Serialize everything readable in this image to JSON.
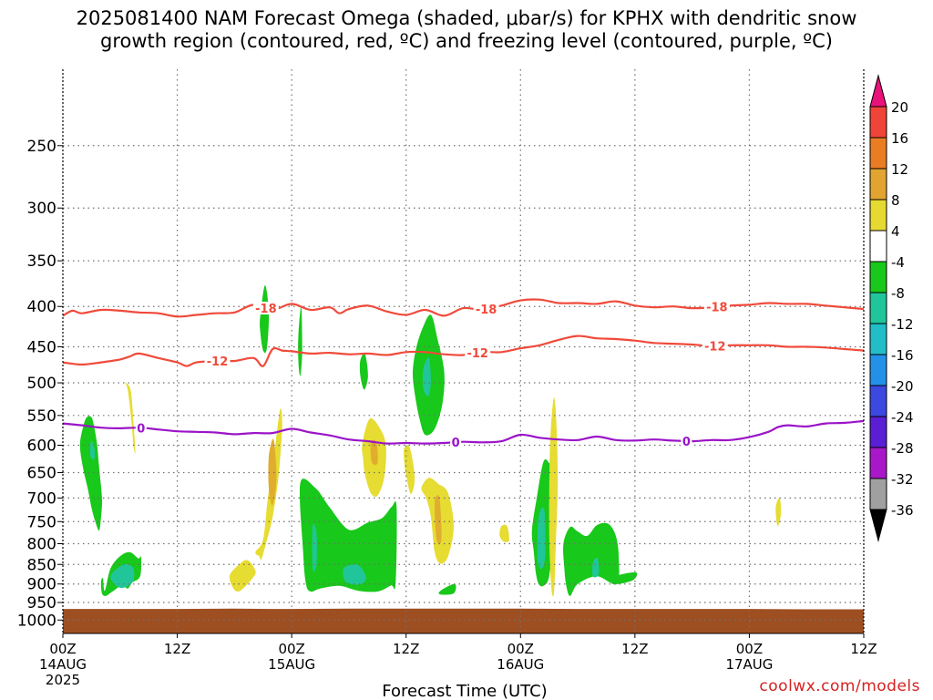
{
  "title_line1": "2025081400 NAM Forecast Omega (shaded, μbar/s) for KPHX with dendritic snow",
  "title_line2": "growth region (contoured, red, ºC) and freezing level (contoured, purple, ºC)",
  "credit": "coolwx.com/models",
  "colors": {
    "ground": "#9e4f22",
    "isotherm_red": "#f04a3a",
    "freezing_purple": "#9b14c8",
    "omega_green": "#18c81a",
    "omega_teal": "#21c59a",
    "omega_yellow": "#e6dc32",
    "omega_gold": "#e0ad2e"
  },
  "chart_data": {
    "type": "time-height cross-section",
    "title": "2025081400 NAM Forecast Omega (shaded, μbar/s) for KPHX with dendritic snow growth region (contoured, red, ºC) and freezing level (contoured, purple, ºC)",
    "xlabel": "Forecast Time (UTC)",
    "ylabel": "",
    "x_hours_range": [
      0,
      84
    ],
    "y_pressure_hpa_range": [
      200,
      1040
    ],
    "y_scale": "log-pressure, inverted",
    "grid": true,
    "x_ticks": [
      {
        "h": 0,
        "lines": [
          "00Z",
          "14AUG",
          "2025"
        ]
      },
      {
        "h": 12,
        "lines": [
          "12Z"
        ]
      },
      {
        "h": 24,
        "lines": [
          "00Z",
          "15AUG"
        ]
      },
      {
        "h": 36,
        "lines": [
          "12Z"
        ]
      },
      {
        "h": 48,
        "lines": [
          "00Z",
          "16AUG"
        ]
      },
      {
        "h": 60,
        "lines": [
          "12Z"
        ]
      },
      {
        "h": 72,
        "lines": [
          "00Z",
          "17AUG"
        ]
      },
      {
        "h": 84,
        "lines": [
          "12Z"
        ]
      }
    ],
    "y_ticks": [
      250,
      300,
      350,
      400,
      450,
      500,
      550,
      600,
      650,
      700,
      750,
      800,
      850,
      900,
      950,
      1000
    ],
    "colorbar": {
      "labels": [
        "20",
        "16",
        "12",
        "8",
        "4",
        "-4",
        "-8",
        "-12",
        "-16",
        "-20",
        "-24",
        "-28",
        "-32",
        "-36"
      ],
      "colors": [
        "#e8127a",
        "#f0433a",
        "#ea7d24",
        "#e2a431",
        "#e6d932",
        "#ffffff",
        "#18c81a",
        "#21c59a",
        "#21bec8",
        "#2391e8",
        "#3c48e0",
        "#5a1ed4",
        "#a818c8",
        "#a0a0a0",
        "#000000"
      ]
    },
    "ground_pressure": [
      968,
      968,
      968,
      967,
      968,
      968,
      967,
      967,
      967,
      967,
      968,
      968,
      968,
      968,
      968,
      969,
      969,
      969
    ],
    "ground_hours": [
      0,
      6,
      12,
      18,
      22,
      24,
      30,
      36,
      40,
      48,
      54,
      60,
      62,
      66,
      72,
      78,
      80,
      84
    ],
    "contours": [
      {
        "name": "-18",
        "color": "#f04a3a",
        "hours": [
          0,
          1,
          2,
          4,
          6,
          8,
          10,
          12,
          14,
          16,
          18,
          20,
          22,
          24,
          26,
          28,
          29,
          30,
          32,
          34,
          36,
          38,
          40,
          42,
          44,
          46,
          48,
          50,
          52,
          54,
          56,
          58,
          60,
          62,
          64,
          66,
          68,
          70,
          72,
          74,
          76,
          78,
          80,
          82,
          84
        ],
        "values": [
          411,
          405,
          408,
          404,
          405,
          407,
          408,
          412,
          410,
          408,
          407,
          398,
          404,
          397,
          404,
          401,
          408,
          403,
          399,
          406,
          410,
          404,
          411,
          402,
          404,
          399,
          393,
          392,
          396,
          396,
          397,
          394,
          399,
          401,
          400,
          402,
          401,
          399,
          398,
          396,
          397,
          397,
          399,
          401,
          403
        ],
        "labels": [
          {
            "h": 21.3,
            "text": "-18"
          },
          {
            "h": 44.4,
            "text": "-18"
          },
          {
            "h": 68.6,
            "text": "-18"
          }
        ]
      },
      {
        "name": "-12",
        "color": "#f04a3a",
        "hours": [
          0,
          2,
          4,
          6,
          7,
          8,
          10,
          12,
          13,
          14,
          16,
          18,
          20,
          21,
          22,
          23,
          24,
          26,
          28,
          30,
          32,
          34,
          36,
          38,
          40,
          42,
          44,
          46,
          48,
          50,
          52,
          54,
          56,
          58,
          60,
          62,
          64,
          66,
          68,
          70,
          72,
          74,
          76,
          78,
          80,
          82,
          84
        ],
        "values": [
          471,
          474,
          471,
          467,
          463,
          459,
          465,
          471,
          476,
          471,
          469,
          469,
          465,
          476,
          453,
          455,
          456,
          459,
          458,
          460,
          459,
          461,
          457,
          457,
          460,
          461,
          457,
          457,
          452,
          448,
          441,
          436,
          439,
          440,
          442,
          445,
          446,
          447,
          449,
          448,
          448,
          448,
          450,
          450,
          451,
          453,
          455
        ],
        "labels": [
          {
            "h": 16.2,
            "text": "-12"
          },
          {
            "h": 43.5,
            "text": "-12"
          },
          {
            "h": 68.4,
            "text": "-12"
          }
        ]
      },
      {
        "name": "0",
        "color": "#9b14c8",
        "hours": [
          0,
          2,
          4,
          6,
          8,
          10,
          12,
          14,
          16,
          18,
          20,
          22,
          24,
          26,
          28,
          30,
          32,
          34,
          36,
          38,
          40,
          42,
          44,
          46,
          48,
          50,
          52,
          54,
          56,
          58,
          60,
          62,
          64,
          66,
          68,
          70,
          72,
          74,
          75,
          76,
          78,
          80,
          82,
          84
        ],
        "values": [
          563,
          566,
          570,
          571,
          570,
          573,
          576,
          577,
          578,
          581,
          579,
          579,
          572,
          578,
          583,
          590,
          593,
          597,
          596,
          597,
          596,
          594,
          595,
          593,
          582,
          587,
          590,
          591,
          585,
          591,
          592,
          590,
          592,
          593,
          591,
          591,
          586,
          577,
          569,
          566,
          568,
          563,
          562,
          559
        ],
        "labels": [
          {
            "h": 8.2,
            "text": "0"
          },
          {
            "h": 41.2,
            "text": "0"
          },
          {
            "h": 65.4,
            "text": "0"
          }
        ]
      }
    ],
    "omega_regions": [
      {
        "level": "-4 to -8",
        "color": "#18c81a",
        "hours": [
          3.0,
          3.3,
          3.6,
          3.8,
          4.1,
          4.0,
          3.8,
          3.4,
          3.0,
          2.6,
          2.1,
          1.8,
          2.1,
          2.5
        ],
        "pressure": [
          553,
          570,
          600,
          640,
          700,
          740,
          770,
          750,
          720,
          680,
          640,
          600,
          570,
          553
        ]
      },
      {
        "level": "-8 to -12",
        "color": "#21c59a",
        "hours": [
          3.0,
          3.3,
          3.3,
          2.9,
          2.9
        ],
        "pressure": [
          592,
          605,
          625,
          620,
          600
        ]
      },
      {
        "level": "4 to 8",
        "color": "#e6dc32",
        "hours": [
          6.5,
          7.1,
          7.4,
          7.6,
          7.4,
          7.2,
          6.8
        ],
        "pressure": [
          500,
          510,
          560,
          613,
          600,
          560,
          510
        ]
      },
      {
        "level": "-4 to -8",
        "color": "#18c81a",
        "hours": [
          4.4,
          5.0,
          6.0,
          7.0,
          7.9,
          8.2,
          8.1,
          7.3,
          6.8,
          6.2,
          5.2,
          4.5,
          4.1,
          4.0,
          4.2
        ],
        "pressure": [
          918,
          860,
          830,
          820,
          835,
          832,
          880,
          896,
          912,
          904,
          920,
          932,
          925,
          895,
          885
        ]
      },
      {
        "level": "-8 to -12",
        "color": "#21c59a",
        "hours": [
          5.0,
          6.4,
          7.4,
          7.3,
          6.0
        ],
        "pressure": [
          880,
          850,
          860,
          895,
          910
        ]
      },
      {
        "level": "4 to 8",
        "color": "#e6dc32",
        "hours": [
          17.5,
          18.6,
          19.4,
          20.2,
          19.9,
          18.6,
          17.9
        ],
        "pressure": [
          878,
          848,
          840,
          866,
          885,
          918,
          912
        ]
      },
      {
        "level": "-4 to -8",
        "color": "#18c81a",
        "hours": [
          20.7,
          21.2,
          21.6,
          21.4,
          21.0,
          20.7
        ],
        "pressure": [
          412,
          376,
          408,
          452,
          455,
          430
        ]
      },
      {
        "level": "4 to 8",
        "color": "#e6dc32",
        "hours": [
          20.2,
          21.0,
          21.5,
          22.2,
          22.8,
          23.0,
          22.6,
          22.0,
          21.3,
          20.8,
          20.6
        ],
        "pressure": [
          820,
          790,
          700,
          610,
          540,
          570,
          660,
          740,
          800,
          838,
          830
        ]
      },
      {
        "level": "8 to 12",
        "color": "#e0ad2e",
        "hours": [
          21.6,
          22.1,
          22.4,
          22.0,
          21.6
        ],
        "pressure": [
          620,
          590,
          660,
          715,
          680
        ]
      },
      {
        "level": "-4 to -8",
        "color": "#18c81a",
        "hours": [
          24.7,
          25.0,
          25.1,
          24.9,
          24.7
        ],
        "pressure": [
          435,
          400,
          455,
          490,
          470
        ]
      },
      {
        "level": "-4 to -8",
        "color": "#18c81a",
        "hours": [
          24.9,
          26.5,
          28.0,
          30.0,
          32.0,
          33.5,
          34.5,
          35.0,
          34.9,
          34.4,
          33.0,
          31.0,
          29.0,
          27.0,
          26.0,
          25.5,
          25.2
        ],
        "pressure": [
          670,
          680,
          720,
          768,
          752,
          742,
          718,
          720,
          898,
          904,
          920,
          918,
          905,
          912,
          920,
          900,
          820
        ]
      },
      {
        "level": "-8 to -12",
        "color": "#21c59a",
        "hours": [
          26.2,
          26.6,
          26.6,
          26.2
        ],
        "pressure": [
          760,
          775,
          850,
          860
        ]
      },
      {
        "level": "-8 to -12",
        "color": "#21c59a",
        "hours": [
          29.5,
          31.0,
          31.8,
          31.0,
          29.6
        ],
        "pressure": [
          858,
          852,
          885,
          902,
          892
        ]
      },
      {
        "level": "-4 to -8",
        "color": "#18c81a",
        "hours": [
          31.2,
          31.7,
          32.0,
          31.6,
          31.2
        ],
        "pressure": [
          468,
          460,
          490,
          510,
          490
        ]
      },
      {
        "level": "4 to 8",
        "color": "#e6dc32",
        "hours": [
          31.4,
          32.2,
          33.4,
          33.9,
          33.7,
          33.0,
          32.3,
          31.7,
          31.5
        ],
        "pressure": [
          598,
          555,
          575,
          605,
          660,
          695,
          690,
          655,
          625
        ]
      },
      {
        "level": "8 to 12",
        "color": "#e0ad2e",
        "hours": [
          32.3,
          32.9,
          33.0,
          32.4
        ],
        "pressure": [
          595,
          595,
          632,
          630
        ]
      },
      {
        "level": "4 to 8",
        "color": "#e6dc32",
        "hours": [
          35.8,
          36.4,
          36.9,
          36.5,
          36.0,
          35.8
        ],
        "pressure": [
          605,
          605,
          660,
          692,
          655,
          630
        ]
      },
      {
        "level": "-4 to -8",
        "color": "#18c81a",
        "hours": [
          37.0,
          37.7,
          38.6,
          39.3,
          40.0,
          39.8,
          39.0,
          38.0,
          37.4,
          36.9,
          36.7
        ],
        "pressure": [
          455,
          427,
          410,
          440,
          485,
          532,
          572,
          582,
          555,
          515,
          485
        ]
      },
      {
        "level": "-8 to -12",
        "color": "#21c59a",
        "hours": [
          37.8,
          38.4,
          38.6,
          38.3,
          37.8
        ],
        "pressure": [
          480,
          465,
          500,
          520,
          508
        ]
      },
      {
        "level": "4 to 8",
        "color": "#e6dc32",
        "hours": [
          37.6,
          38.4,
          39.4,
          40.4,
          41.0,
          40.4,
          39.6,
          39.0,
          38.6,
          38.1
        ],
        "pressure": [
          680,
          660,
          672,
          690,
          760,
          830,
          848,
          820,
          740,
          700
        ]
      },
      {
        "level": "8 to 12",
        "color": "#e0ad2e",
        "hours": [
          39.0,
          39.5,
          39.7,
          39.2
        ],
        "pressure": [
          710,
          700,
          790,
          790
        ]
      },
      {
        "level": "-4 to -8",
        "color": "#18c81a",
        "hours": [
          39.6,
          41.1,
          41.0,
          39.6
        ],
        "pressure": [
          918,
          900,
          925,
          928
        ]
      },
      {
        "level": "4 to 8",
        "color": "#e6dc32",
        "hours": [
          46.0,
          46.6,
          46.8,
          46.2,
          45.8
        ],
        "pressure": [
          760,
          760,
          792,
          795,
          780
        ]
      },
      {
        "level": "-4 to -8",
        "color": "#18c81a",
        "hours": [
          49.7,
          50.4,
          51.0,
          51.5,
          51.4,
          51.0,
          50.4,
          49.9,
          49.6,
          49.4,
          49.2
        ],
        "pressure": [
          700,
          630,
          632,
          650,
          780,
          880,
          905,
          900,
          870,
          820,
          770
        ]
      },
      {
        "level": "-8 to -12",
        "color": "#21c59a",
        "hours": [
          49.9,
          50.5,
          50.6,
          50.3,
          49.8
        ],
        "pressure": [
          740,
          725,
          820,
          860,
          840
        ]
      },
      {
        "level": "4 to 8",
        "color": "#e6dc32",
        "hours": [
          51.1,
          51.5,
          51.8,
          51.9,
          51.7,
          51.5,
          51.2,
          51.0
        ],
        "pressure": [
          600,
          522,
          575,
          680,
          800,
          925,
          900,
          760
        ]
      },
      {
        "level": "-4 to -8",
        "color": "#18c81a",
        "hours": [
          52.5,
          53.2,
          54.0,
          55.0,
          56.0,
          57.2,
          58.0,
          58.3,
          58.1,
          56.0,
          54.0,
          53.2,
          52.8,
          52.6
        ],
        "pressure": [
          800,
          762,
          772,
          782,
          758,
          755,
          782,
          832,
          900,
          880,
          900,
          932,
          905,
          860
        ]
      },
      {
        "level": "-8 to -12",
        "color": "#21c59a",
        "hours": [
          55.6,
          56.1,
          56.2,
          55.6
        ],
        "pressure": [
          845,
          835,
          875,
          880
        ]
      },
      {
        "level": "-4 to -8",
        "color": "#18c81a",
        "hours": [
          58.0,
          60.1,
          59.8,
          58.0
        ],
        "pressure": [
          880,
          870,
          890,
          900
        ]
      },
      {
        "level": "4 to 8",
        "color": "#e6dc32",
        "hours": [
          74.8,
          75.2,
          75.3,
          75.0,
          74.8
        ],
        "pressure": [
          715,
          700,
          735,
          760,
          740
        ]
      }
    ]
  }
}
